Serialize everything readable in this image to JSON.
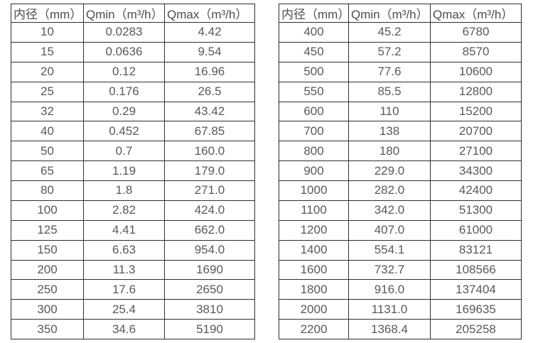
{
  "page": {
    "background": "#ffffff",
    "text_color": "#595959",
    "border_color": "#2f2f2f"
  },
  "tables": [
    {
      "name": "flow-table-left",
      "headers": [
        "内径（mm）",
        "Qmin（m³/h）",
        "Qmax（m³/h）"
      ],
      "rows": [
        [
          "10",
          "0.0283",
          "4.42"
        ],
        [
          "15",
          "0.0636",
          "9.54"
        ],
        [
          "20",
          "0.12",
          "16.96"
        ],
        [
          "25",
          "0.176",
          "26.5"
        ],
        [
          "32",
          "0.29",
          "43.42"
        ],
        [
          "40",
          "0.452",
          "67.85"
        ],
        [
          "50",
          "0.7",
          "160.0"
        ],
        [
          "65",
          "1.19",
          "179.0"
        ],
        [
          "80",
          "1.8",
          "271.0"
        ],
        [
          "100",
          "2.82",
          "424.0"
        ],
        [
          "125",
          "4.41",
          "662.0"
        ],
        [
          "150",
          "6.63",
          "954.0"
        ],
        [
          "200",
          "11.3",
          "1690"
        ],
        [
          "250",
          "17.6",
          "2650"
        ],
        [
          "300",
          "25.4",
          "3810"
        ],
        [
          "350",
          "34.6",
          "5190"
        ]
      ]
    },
    {
      "name": "flow-table-right",
      "headers": [
        "内径（mm）",
        "Qmin（m³/h）",
        "Qmax（m³/h）"
      ],
      "rows": [
        [
          "400",
          "45.2",
          "6780"
        ],
        [
          "450",
          "57.2",
          "8570"
        ],
        [
          "500",
          "77.6",
          "10600"
        ],
        [
          "550",
          "85.5",
          "12800"
        ],
        [
          "600",
          "110",
          "15200"
        ],
        [
          "700",
          "138",
          "20700"
        ],
        [
          "800",
          "180",
          "27100"
        ],
        [
          "900",
          "229.0",
          "34300"
        ],
        [
          "1000",
          "282.0",
          "42400"
        ],
        [
          "1100",
          "342.0",
          "51300"
        ],
        [
          "1200",
          "407.0",
          "61000"
        ],
        [
          "1400",
          "554.1",
          "83121"
        ],
        [
          "1600",
          "732.7",
          "108566"
        ],
        [
          "1800",
          "916.0",
          "137404"
        ],
        [
          "2000",
          "1131.0",
          "169635"
        ],
        [
          "2200",
          "1368.4",
          "205258"
        ]
      ]
    }
  ]
}
